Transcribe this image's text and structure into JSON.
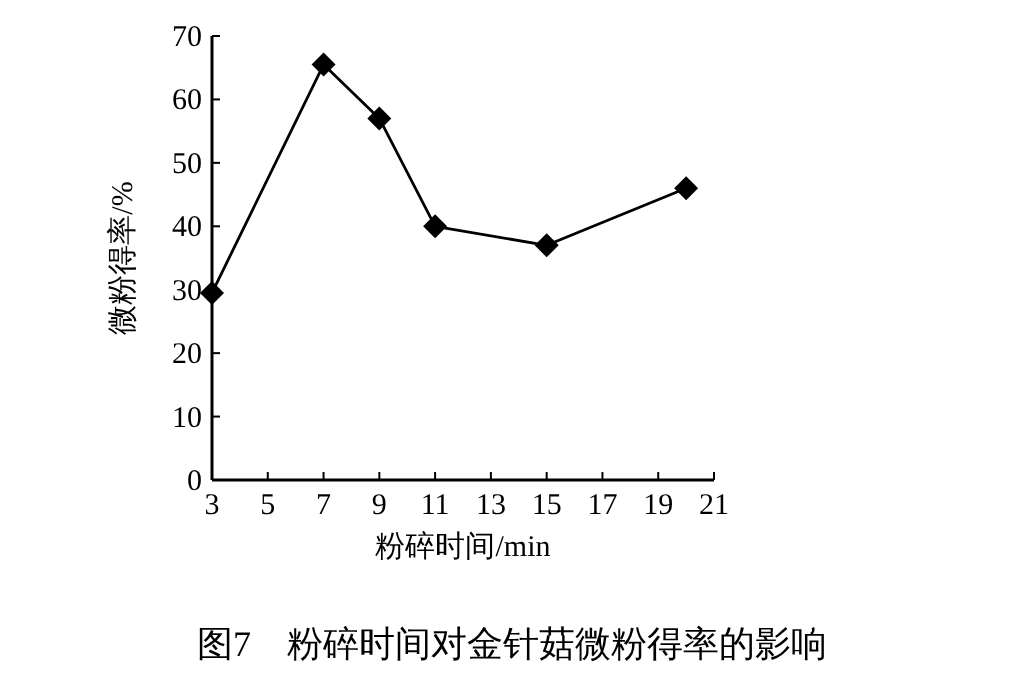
{
  "chart_data": {
    "type": "line",
    "title": "图7　粉碎时间对金针菇微粉得率的影响",
    "xlabel": "粉碎时间/min",
    "ylabel": "微粉得率/%",
    "x": [
      3,
      7,
      9,
      11,
      15,
      20
    ],
    "series": [
      {
        "color": "#000000",
        "values": [
          29.5,
          65.5,
          57,
          40,
          37,
          46
        ]
      }
    ],
    "xlim": [
      3,
      21
    ],
    "xticks": [
      3,
      5,
      7,
      9,
      11,
      13,
      15,
      17,
      19,
      21
    ],
    "ylim": [
      0,
      70
    ],
    "yticks": [
      0,
      10,
      20,
      30,
      40,
      50,
      60,
      70
    ],
    "marker": "diamond",
    "line_style": "solid",
    "grid": false
  }
}
